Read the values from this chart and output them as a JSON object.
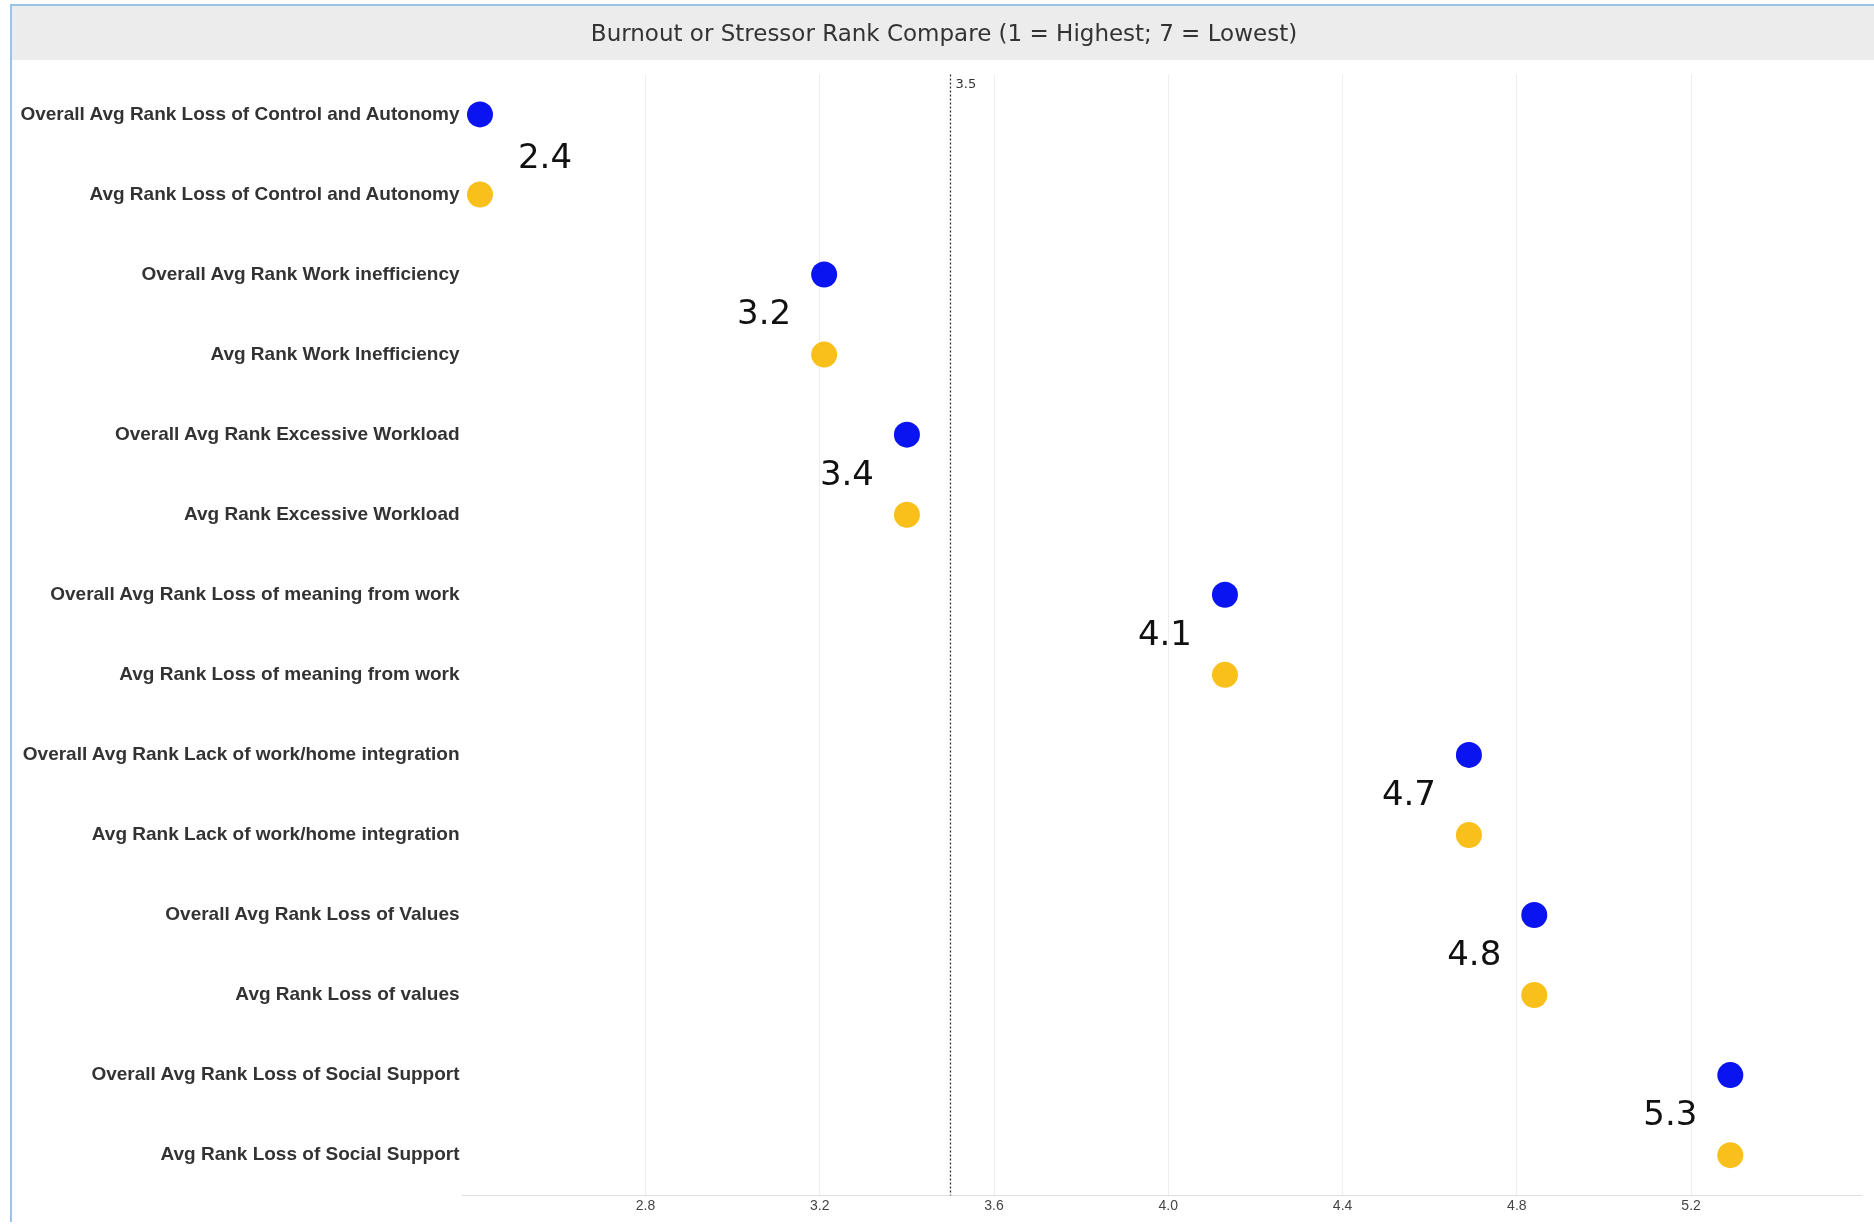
{
  "chart_data": {
    "type": "scatter",
    "title": "Burnout or Stressor Rank Compare (1 = Highest; 7 = Lowest)",
    "orientation": "horizontal",
    "marker": "circle",
    "grid": "x",
    "categories": [
      "Overall Avg Rank Loss of Control and Autonomy",
      "Avg Rank Loss of Control and Autonomy",
      "Overall Avg Rank Work inefficiency",
      "Avg Rank Work Inefficiency",
      "Overall Avg Rank Excessive Workload",
      "Avg Rank Excessive Workload",
      "Overall Avg Rank Loss of meaning from work",
      "Avg Rank Loss of meaning from work",
      "Overall Avg Rank Lack of work/home integration",
      "Avg Rank Lack of work/home integration",
      "Overall Avg Rank Loss of Values",
      "Avg Rank Loss of values",
      "Overall Avg Rank Loss of Social Support",
      "Avg Rank Loss of Social Support"
    ],
    "series": [
      {
        "color": "#0a14f0",
        "values": [
          2.42,
          null,
          3.21,
          null,
          3.4,
          null,
          4.13,
          null,
          4.69,
          null,
          4.84,
          null,
          5.29,
          null
        ]
      },
      {
        "color": "#f9c01c",
        "values": [
          null,
          2.42,
          null,
          3.21,
          null,
          3.4,
          null,
          4.13,
          null,
          4.69,
          null,
          4.84,
          null,
          5.29
        ],
        "value_labels": [
          null,
          "2.4",
          null,
          "3.2",
          null,
          "3.4",
          null,
          "4.1",
          null,
          "4.7",
          null,
          "4.8",
          null,
          "5.3"
        ]
      }
    ],
    "xlim": [
      2.38,
      5.59
    ],
    "xticks": [
      2.8,
      3.2,
      3.6,
      {
        "value": 4,
        "label": "4.0"
      },
      4.4,
      4.8,
      5.2
    ],
    "ref_lines": [
      {
        "axis": "x",
        "value": 3.5,
        "label": "3.5",
        "line_style": "dotted"
      }
    ]
  }
}
